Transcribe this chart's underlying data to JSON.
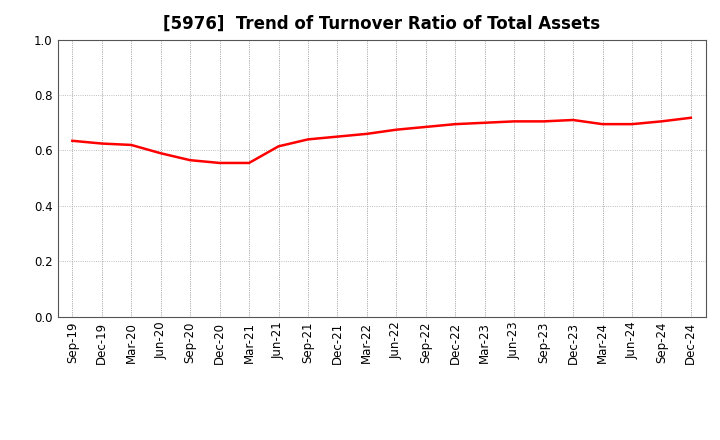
{
  "title": "[5976]  Trend of Turnover Ratio of Total Assets",
  "x_labels": [
    "Sep-19",
    "Dec-19",
    "Mar-20",
    "Jun-20",
    "Sep-20",
    "Dec-20",
    "Mar-21",
    "Jun-21",
    "Sep-21",
    "Dec-21",
    "Mar-22",
    "Jun-22",
    "Sep-22",
    "Dec-22",
    "Mar-23",
    "Jun-23",
    "Sep-23",
    "Dec-23",
    "Mar-24",
    "Jun-24",
    "Sep-24",
    "Dec-24"
  ],
  "y_values": [
    0.635,
    0.625,
    0.62,
    0.59,
    0.565,
    0.555,
    0.555,
    0.615,
    0.64,
    0.65,
    0.66,
    0.675,
    0.685,
    0.695,
    0.7,
    0.705,
    0.705,
    0.71,
    0.695,
    0.695,
    0.705,
    0.718
  ],
  "line_color": "#FF0000",
  "line_width": 1.8,
  "ylim": [
    0.0,
    1.0
  ],
  "yticks": [
    0.0,
    0.2,
    0.4,
    0.6,
    0.8,
    1.0
  ],
  "grid_color": "#aaaaaa",
  "bg_color": "#ffffff",
  "title_fontsize": 12,
  "tick_fontsize": 8.5
}
